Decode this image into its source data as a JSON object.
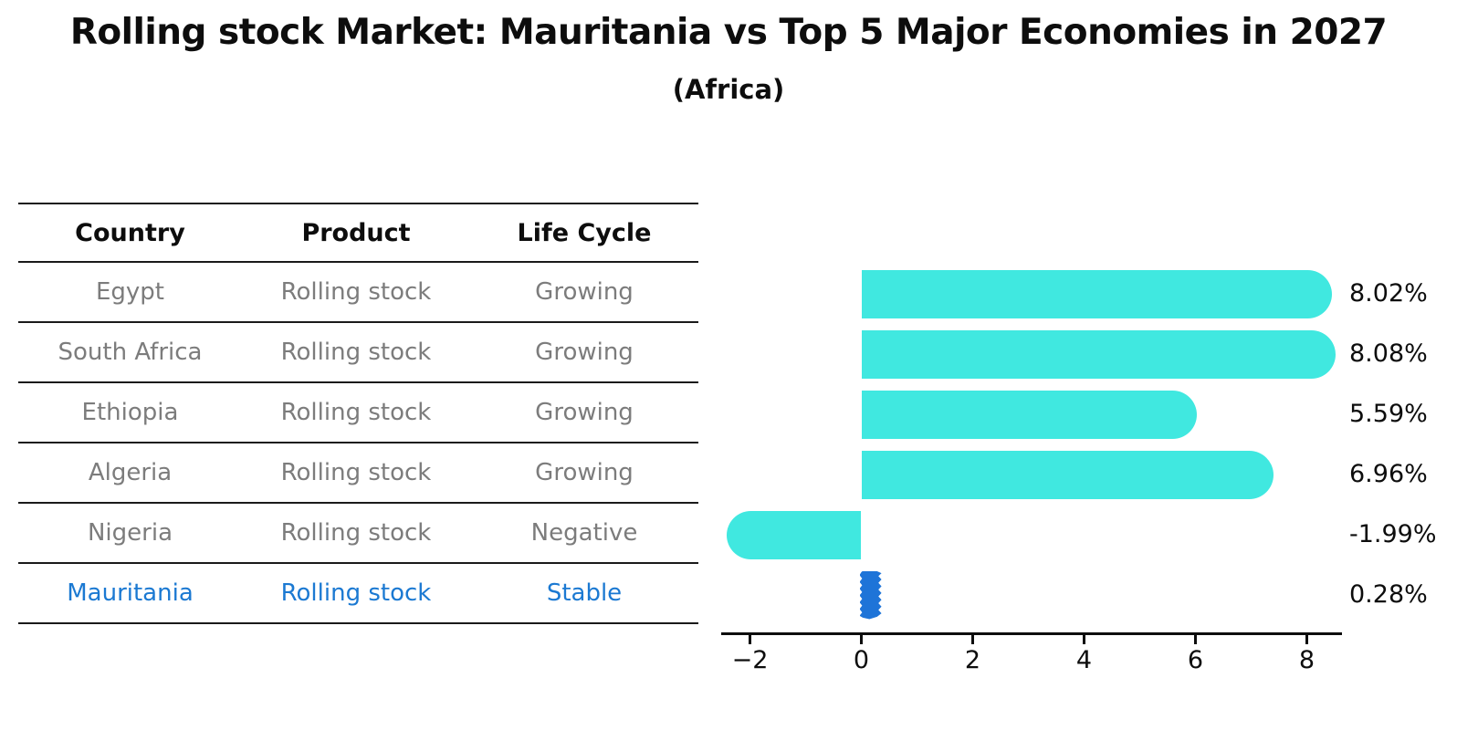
{
  "header": {
    "title": "Rolling stock Market: Mauritania vs Top 5 Major Economies in 2027",
    "subtitle": "(Africa)"
  },
  "table": {
    "columns": [
      "Country",
      "Product",
      "Life Cycle"
    ],
    "rows": [
      {
        "country": "Egypt",
        "product": "Rolling stock",
        "life_cycle": "Growing"
      },
      {
        "country": "South Africa",
        "product": "Rolling stock",
        "life_cycle": "Growing"
      },
      {
        "country": "Ethiopia",
        "product": "Rolling stock",
        "life_cycle": "Growing"
      },
      {
        "country": "Algeria",
        "product": "Rolling stock",
        "life_cycle": "Growing"
      },
      {
        "country": "Nigeria",
        "product": "Rolling stock",
        "life_cycle": "Negative"
      },
      {
        "country": "Mauritania",
        "product": "Rolling stock",
        "life_cycle": "Stable"
      }
    ],
    "highlight_row_index": 5
  },
  "chart_data": {
    "type": "bar",
    "orientation": "horizontal",
    "title": "Rolling stock Market: Mauritania vs Top 5 Major Economies in 2027",
    "subtitle": "(Africa)",
    "categories": [
      "Egypt",
      "South Africa",
      "Ethiopia",
      "Algeria",
      "Nigeria",
      "Mauritania"
    ],
    "values": [
      8.02,
      8.08,
      5.59,
      6.96,
      -1.99,
      0.28
    ],
    "value_labels": [
      "8.02%",
      "8.08%",
      "5.59%",
      "6.96%",
      "-1.99%",
      "0.28%"
    ],
    "x_ticks": [
      "−2",
      "0",
      "2",
      "4",
      "6",
      "8"
    ],
    "x_tick_values": [
      -2,
      0,
      2,
      4,
      6,
      8
    ],
    "xlim": [
      -2.5,
      8.6
    ],
    "grid": false,
    "legend": "none",
    "xlabel": "",
    "ylabel": "",
    "bar_color": "#40E8E0",
    "highlight_color": "#1E74D8",
    "highlight_index": 5
  },
  "colors": {
    "text_primary": "#0d0d0d",
    "table_text": "#7c7c7c",
    "highlight_text": "#1b79d2",
    "line": "#1a1a1a",
    "background": "#ffffff"
  }
}
